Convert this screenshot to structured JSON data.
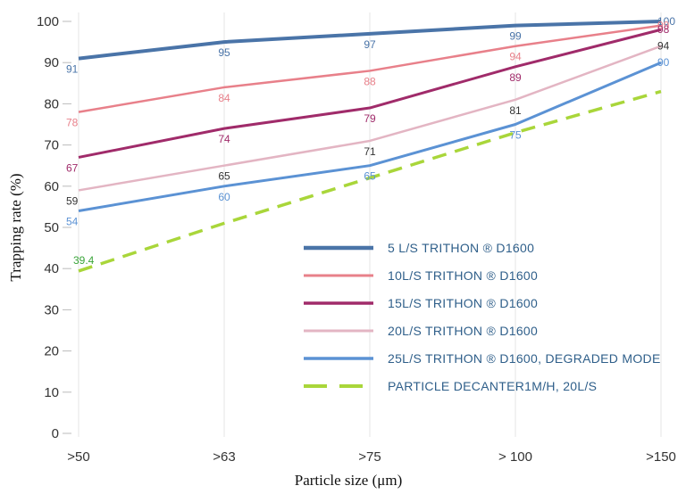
{
  "chart_data": {
    "type": "line",
    "xlabel": "Particle size (μm)",
    "ylabel": "Trapping rate (%)",
    "categories": [
      ">50",
      ">63",
      ">75",
      "> 100",
      ">150"
    ],
    "yticks": [
      "0",
      "10",
      "20",
      "30",
      "40",
      "50",
      "60",
      "70",
      "80",
      "90",
      "100"
    ],
    "ylim": [
      0,
      100
    ],
    "grid": "vertical",
    "legend_position": "bottom-right",
    "series": [
      {
        "name": "5 L/S TRITHON ® D1600",
        "color": "#4a74a8",
        "width": 4,
        "dash": "",
        "values": [
          91,
          95,
          97,
          99,
          100
        ],
        "labels": [
          "91",
          "95",
          "97",
          "99",
          "100"
        ],
        "label_color": "#4a74a8"
      },
      {
        "name": "10L/S TRITHON ® D1600",
        "color": "#e8808a",
        "width": 2.5,
        "dash": "",
        "values": [
          78,
          84,
          88,
          94,
          99
        ],
        "labels": [
          "78",
          "84",
          "88",
          "94",
          "99"
        ],
        "label_color": "#e8808a"
      },
      {
        "name": "15L/S TRITHON ® D1600",
        "color": "#a02b6a",
        "width": 3,
        "dash": "",
        "values": [
          67,
          74,
          79,
          89,
          98
        ],
        "labels": [
          "67",
          "74",
          "79",
          "89",
          "98"
        ],
        "label_color": "#a02b6a"
      },
      {
        "name": "20L/S TRITHON ® D1600",
        "color": "#e3b5c3",
        "width": 2.5,
        "dash": "",
        "values": [
          59,
          65,
          71,
          81,
          94
        ],
        "labels": [
          "59",
          "65",
          "71",
          "81",
          "94"
        ],
        "label_color": "#333333"
      },
      {
        "name": "25L/S TRITHON ® D1600, DEGRADED MODE",
        "color": "#5b92d4",
        "width": 3,
        "dash": "",
        "values": [
          54,
          60,
          65,
          75,
          90
        ],
        "labels": [
          "54",
          "60",
          "65",
          "75",
          "90"
        ],
        "label_color": "#5b92d4"
      },
      {
        "name": "PARTICLE DECANTER1M/H, 20L/S",
        "color": "#a9d63a",
        "width": 3.5,
        "dash": "16,10",
        "values": [
          39.4,
          51,
          62,
          73,
          83
        ],
        "labels": [
          "39.4",
          "",
          "",
          "",
          ""
        ],
        "label_color": "#3aa53a"
      }
    ]
  }
}
